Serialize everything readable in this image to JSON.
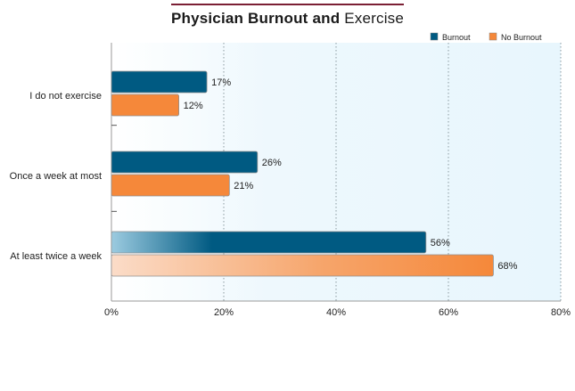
{
  "title": {
    "part1": "Physician Burnout and",
    "part2": "Exercise"
  },
  "colors": {
    "burnout": "#005a82",
    "no_burnout": "#f5883a",
    "title_rule": "#7b1f35",
    "plot_bg": "#eef8fd"
  },
  "chart_data": {
    "type": "bar",
    "orientation": "horizontal",
    "title": "Physician Burnout and Exercise",
    "categories": [
      "I do not exercise",
      "Once a week at most",
      "At least twice a week"
    ],
    "series": [
      {
        "name": "Burnout",
        "values": [
          17,
          26,
          56
        ]
      },
      {
        "name": "No Burnout",
        "values": [
          12,
          21,
          68
        ]
      }
    ],
    "value_labels": [
      [
        "17%",
        "26%",
        "56%"
      ],
      [
        "12%",
        "21%",
        "68%"
      ]
    ],
    "xlim": [
      0,
      80
    ],
    "x_ticks": [
      "0%",
      "20%",
      "40%",
      "60%",
      "80%"
    ],
    "grid": "vertical dotted",
    "legend_position": "top-right",
    "xlabel": "",
    "ylabel": ""
  }
}
